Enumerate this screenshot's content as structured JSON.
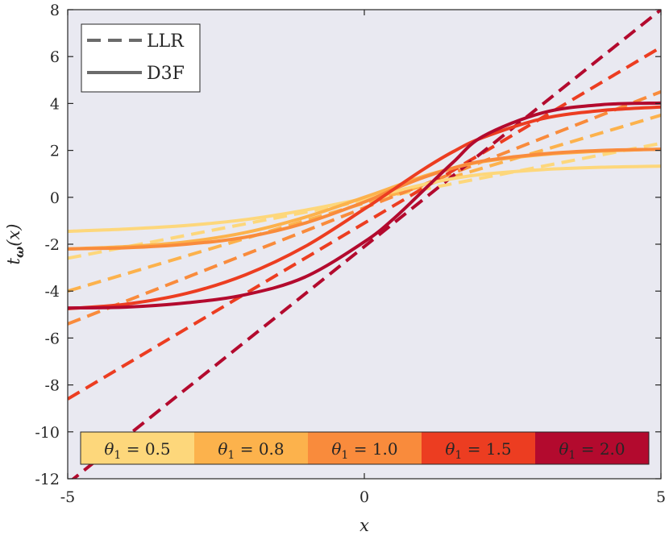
{
  "chart_data": {
    "type": "line",
    "title": "",
    "xlabel": "x",
    "ylabel": "t_ω(x)",
    "xlim": [
      -5,
      5
    ],
    "ylim": [
      -12,
      8
    ],
    "xticks": [
      -5,
      0,
      5
    ],
    "yticks": [
      -12,
      -10,
      -8,
      -6,
      -4,
      -2,
      0,
      2,
      4,
      6,
      8
    ],
    "xtick_labels": [
      "-5",
      "0",
      "5"
    ],
    "ytick_labels": [
      "-12",
      "-10",
      "-8",
      "-6",
      "-4",
      "-2",
      "0",
      "2",
      "4",
      "6",
      "8"
    ],
    "grid": false,
    "background": "#e9e9f1",
    "legend": {
      "position": "top-left",
      "entries": [
        {
          "label": "LLR",
          "style": "dashed",
          "color": "#6b6b6b"
        },
        {
          "label": "D3F",
          "style": "solid",
          "color": "#6b6b6b"
        }
      ]
    },
    "colorbar": {
      "position": "bottom",
      "labels": [
        "θ1 = 0.5",
        "θ1 = 0.8",
        "θ1 = 1.0",
        "θ1 = 1.5",
        "θ1 = 2.0"
      ],
      "colors": [
        "#fdd77b",
        "#fcb24c",
        "#f98b3c",
        "#ec3d21",
        "#b30a2e"
      ]
    },
    "series": [
      {
        "theta": 0.5,
        "method": "LLR",
        "style": "dashed",
        "color": "#fdd77b",
        "x": [
          -5,
          5
        ],
        "y": [
          -2.6,
          2.3
        ]
      },
      {
        "theta": 0.8,
        "method": "LLR",
        "style": "dashed",
        "color": "#fcb24c",
        "x": [
          -5,
          5
        ],
        "y": [
          -4.0,
          3.5
        ]
      },
      {
        "theta": 1.0,
        "method": "LLR",
        "style": "dashed",
        "color": "#f98b3c",
        "x": [
          -5,
          5
        ],
        "y": [
          -5.4,
          4.5
        ]
      },
      {
        "theta": 1.5,
        "method": "LLR",
        "style": "dashed",
        "color": "#ec3d21",
        "x": [
          -5,
          5
        ],
        "y": [
          -8.6,
          6.4
        ]
      },
      {
        "theta": 2.0,
        "method": "LLR",
        "style": "dashed",
        "color": "#b30a2e",
        "x": [
          -5,
          5
        ],
        "y": [
          -12.2,
          8.0
        ]
      },
      {
        "theta": 0.5,
        "method": "D3F",
        "style": "solid",
        "color": "#fdd77b",
        "x": [
          -5,
          -4,
          -3,
          -2,
          -1,
          0,
          0.5,
          1,
          1.5,
          2,
          3,
          4,
          5
        ],
        "y": [
          -1.45,
          -1.35,
          -1.2,
          -0.95,
          -0.55,
          -0.05,
          0.25,
          0.55,
          0.8,
          0.98,
          1.18,
          1.28,
          1.33
        ]
      },
      {
        "theta": 0.8,
        "method": "D3F",
        "style": "solid",
        "color": "#fcb24c",
        "x": [
          -5,
          -4,
          -3,
          -2,
          -1,
          0,
          0.5,
          1,
          1.5,
          2,
          3,
          4,
          5
        ],
        "y": [
          -2.2,
          -2.1,
          -1.9,
          -1.5,
          -0.85,
          0.0,
          0.45,
          0.9,
          1.25,
          1.52,
          1.82,
          1.97,
          2.05
        ]
      },
      {
        "theta": 1.0,
        "method": "D3F",
        "style": "solid",
        "color": "#f98b3c",
        "x": [
          -5,
          -4,
          -3,
          -2,
          -1,
          0,
          0.5,
          1,
          1.5,
          2,
          3,
          4,
          5
        ],
        "y": [
          -2.2,
          -2.15,
          -2.0,
          -1.7,
          -1.1,
          -0.2,
          0.35,
          0.85,
          1.25,
          1.55,
          1.85,
          2.0,
          2.05
        ]
      },
      {
        "theta": 1.5,
        "method": "D3F",
        "style": "solid",
        "color": "#ec3d21",
        "x": [
          -5,
          -4,
          -3,
          -2,
          -1,
          0,
          0.5,
          1,
          1.5,
          2,
          3,
          4,
          5
        ],
        "y": [
          -4.75,
          -4.55,
          -4.1,
          -3.3,
          -2.1,
          -0.5,
          0.35,
          1.2,
          1.95,
          2.55,
          3.35,
          3.7,
          3.85
        ]
      },
      {
        "theta": 2.0,
        "method": "D3F",
        "style": "solid",
        "color": "#b30a2e",
        "x": [
          -5,
          -4,
          -3,
          -2,
          -1,
          0,
          0.5,
          1,
          1.5,
          2,
          3,
          4,
          5
        ],
        "y": [
          -4.72,
          -4.68,
          -4.5,
          -4.15,
          -3.4,
          -1.9,
          -0.9,
          0.3,
          1.5,
          2.6,
          3.6,
          3.95,
          4.02
        ]
      }
    ]
  }
}
